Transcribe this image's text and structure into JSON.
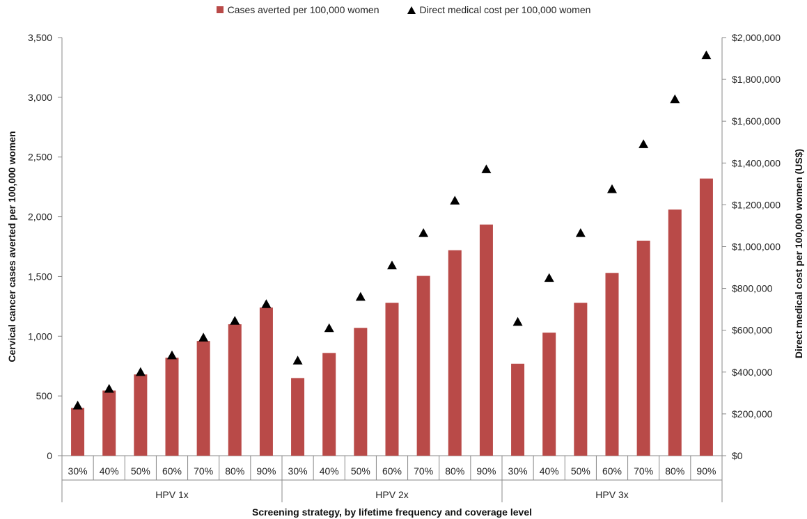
{
  "colors": {
    "bar": "#B94A48",
    "marker": "#000000",
    "axis": "#888888"
  },
  "chart_data": {
    "type": "bar",
    "xlabel": "Screening strategy, by lifetime frequency and coverage level",
    "ylabel": "Cervical cancer cases averted per 100,000 women",
    "y2label": "Direct medical cost per 100,000 women (US$)",
    "ylim": [
      0,
      3500
    ],
    "y2lim": [
      0,
      2000000
    ],
    "y_ticks": [
      "0",
      "500",
      "1,000",
      "1,500",
      "2,000",
      "2,500",
      "3,000",
      "3,500"
    ],
    "y2_ticks": [
      "$0",
      "$200,000",
      "$400,000",
      "$600,000",
      "$800,000",
      "$1,000,000",
      "$1,200,000",
      "$1,400,000",
      "$1,600,000",
      "$1,800,000",
      "$2,000,000"
    ],
    "groups": [
      "HPV 1x",
      "HPV 2x",
      "HPV 3x"
    ],
    "categories": [
      "30%",
      "40%",
      "50%",
      "60%",
      "70%",
      "80%",
      "90%",
      "30%",
      "40%",
      "50%",
      "60%",
      "70%",
      "80%",
      "90%",
      "30%",
      "40%",
      "50%",
      "60%",
      "70%",
      "80%",
      "90%"
    ],
    "grid": false,
    "legend_position": "top-center",
    "series": [
      {
        "name": "Cases averted per 100,000 women",
        "type": "bar",
        "axis": "left",
        "values": [
          400,
          545,
          680,
          820,
          960,
          1100,
          1240,
          650,
          860,
          1070,
          1280,
          1505,
          1720,
          1935,
          770,
          1030,
          1280,
          1530,
          1800,
          2060,
          2320
        ]
      },
      {
        "name": "Direct medical cost per 100,000 women",
        "type": "scatter",
        "marker": "triangle",
        "axis": "right",
        "values": [
          240000,
          320000,
          400000,
          480000,
          565000,
          645000,
          725000,
          455000,
          610000,
          760000,
          910000,
          1065000,
          1220000,
          1370000,
          640000,
          850000,
          1065000,
          1275000,
          1490000,
          1705000,
          1915000
        ]
      }
    ]
  }
}
